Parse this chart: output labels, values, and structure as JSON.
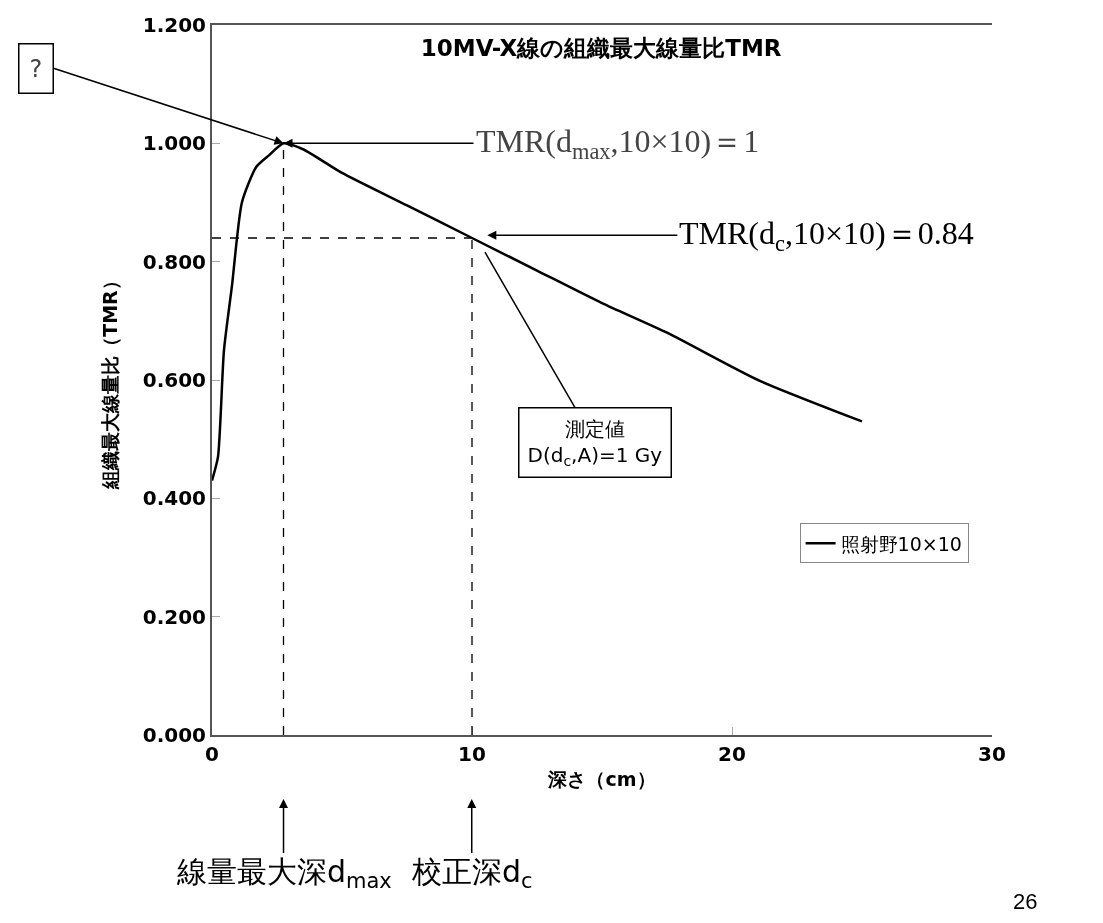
{
  "chart_data": {
    "type": "line",
    "title": "10MV-X線の組織最大線量比TMR",
    "xlabel": "深さ（cm）",
    "ylabel": "組織最大線量比（TMR）",
    "series": [
      {
        "name": "照射野10×10",
        "color": "#000000",
        "x": [
          0,
          0.23,
          0.46,
          0.77,
          1.15,
          1.7,
          2.2,
          2.75,
          3.5,
          5,
          7.5,
          10,
          12.5,
          15,
          17.5,
          21,
          25
        ],
        "values": [
          0.43,
          0.47,
          0.65,
          0.76,
          0.9,
          0.96,
          0.98,
          1.0,
          0.99,
          0.95,
          0.895,
          0.84,
          0.785,
          0.73,
          0.68,
          0.6,
          0.53
        ]
      }
    ],
    "xlim": [
      0,
      30
    ],
    "xticks": [
      0,
      10,
      20,
      30
    ],
    "ylim": [
      0,
      1.2
    ],
    "yticks": [
      {
        "value": 0,
        "label": "0.000"
      },
      {
        "value": 0.2,
        "label": "0.200"
      },
      {
        "value": 0.4,
        "label": "0.400"
      },
      {
        "value": 0.6,
        "label": "0.600"
      },
      {
        "value": 0.8,
        "label": "0.800"
      },
      {
        "value": 1.0,
        "label": "1.000"
      },
      {
        "value": 1.2,
        "label": "1.200"
      }
    ],
    "ref_lines": [
      {
        "axis": "x",
        "value": 2.75,
        "line_style": "dashed"
      },
      {
        "axis": "x",
        "value": 10,
        "line_style": "dashed"
      },
      {
        "axis": "y",
        "value": 0.84,
        "line_style": "dashed"
      }
    ],
    "annotations": [
      {
        "text": "?",
        "x": 2.75,
        "y": 1.0
      },
      {
        "text": "TMR(d$_{max}$,10×10)＝1",
        "x": 2.75,
        "y": 1.0
      },
      "TMR(d$_{c}$,10×10)＝0.84",
      "測定値\nD(d$_{c}$,A)=1 Gy",
      "線量最大深d$_{max}$",
      "校正深d$_{c}$",
      "26"
    ],
    "grid": false,
    "legend": "right",
    "line_style": "solid",
    "marker": "none"
  }
}
